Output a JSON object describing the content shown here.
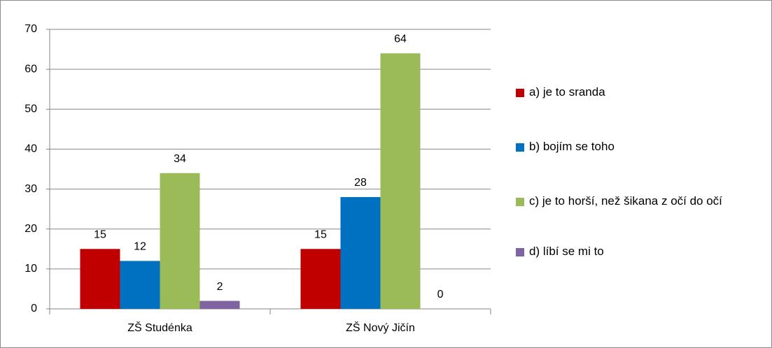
{
  "chart_data": {
    "type": "bar",
    "categories": [
      "ZŠ Studénka",
      "ZŠ Nový Jičín"
    ],
    "series": [
      {
        "name": "a) je to sranda",
        "color": "#c00000",
        "values": [
          15,
          15
        ]
      },
      {
        "name": "b) bojím se toho",
        "color": "#0070c0",
        "values": [
          12,
          28
        ]
      },
      {
        "name": "c) je to horší, než šikana z očí do očí",
        "color": "#9bbb59",
        "values": [
          34,
          64
        ]
      },
      {
        "name": "d) líbí se mi to",
        "color": "#8064a2",
        "values": [
          2,
          0
        ]
      }
    ],
    "ylim": [
      0,
      70
    ],
    "yticks": [
      0,
      10,
      20,
      30,
      40,
      50,
      60,
      70
    ],
    "grid": true,
    "legend": "right"
  }
}
